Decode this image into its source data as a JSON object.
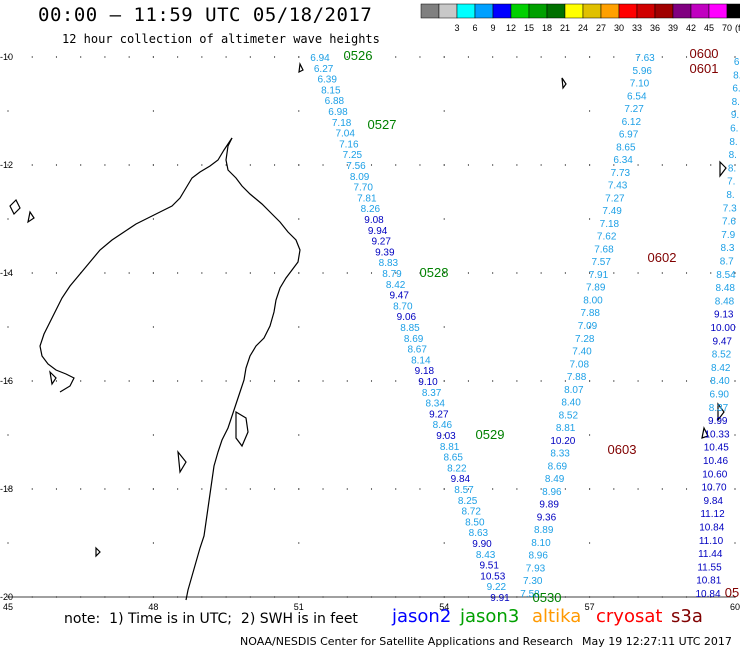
{
  "header": {
    "title": "00:00 – 11:59 UTC 05/18/2017",
    "subtitle": "12 hour collection of altimeter wave heights"
  },
  "color_scale": {
    "unit_label": "(ft)",
    "bins": [
      {
        "label": "",
        "color": "#808080"
      },
      {
        "label": "3",
        "color": "#c8c8c8"
      },
      {
        "label": "6",
        "color": "#00ffff"
      },
      {
        "label": "9",
        "color": "#00a0ff"
      },
      {
        "label": "12",
        "color": "#0000ff"
      },
      {
        "label": "15",
        "color": "#00d000"
      },
      {
        "label": "18",
        "color": "#00a000"
      },
      {
        "label": "21",
        "color": "#007000"
      },
      {
        "label": "24",
        "color": "#ffff00"
      },
      {
        "label": "27",
        "color": "#e0c000"
      },
      {
        "label": "30",
        "color": "#ffa000"
      },
      {
        "label": "33",
        "color": "#ff0000"
      },
      {
        "label": "36",
        "color": "#d00000"
      },
      {
        "label": "39",
        "color": "#a00000"
      },
      {
        "label": "42",
        "color": "#800080"
      },
      {
        "label": "45",
        "color": "#c000c0"
      },
      {
        "label": "70",
        "color": "#ff00ff"
      },
      {
        "label": "",
        "color": "#000000"
      }
    ]
  },
  "axes": {
    "x_labels": [
      "45",
      "48",
      "51",
      "54",
      "57",
      "60"
    ],
    "y_labels": [
      "-10",
      "-12",
      "-14",
      "-16",
      "-18",
      "-20"
    ]
  },
  "colors": {
    "cyan_track": "#1ea0e6",
    "blue_track": "#0000c0",
    "green_label": "#008000",
    "red_label": "#800000",
    "orange": "#ff9900",
    "red": "#ff0000"
  },
  "time_labels": [
    {
      "text": "0526",
      "color": "green"
    },
    {
      "text": "0527",
      "color": "green"
    },
    {
      "text": "0528",
      "color": "green"
    },
    {
      "text": "0529",
      "color": "green"
    },
    {
      "text": "0530",
      "color": "green"
    },
    {
      "text": "0600",
      "color": "red"
    },
    {
      "text": "0601",
      "color": "red"
    },
    {
      "text": "0602",
      "color": "red"
    },
    {
      "text": "0603",
      "color": "red"
    },
    {
      "text": "05",
      "color": "red"
    }
  ],
  "tracks": [
    {
      "name": "track-1",
      "values": [
        "6.94",
        "6.27",
        "6.39",
        "8.15",
        "6.88",
        "6.98",
        "7.18",
        "7.04",
        "7.16",
        "7.25",
        "7.56",
        "8.09",
        "7.70",
        "7.81",
        "8.26",
        "9.08",
        "9.94",
        "9.27",
        "9.39",
        "8.83",
        "8.79",
        "8.42",
        "9.47",
        "8.70",
        "9.06",
        "8.85",
        "8.69",
        "8.67",
        "8.14",
        "9.18",
        "9.10",
        "8.37",
        "8.34",
        "9.27",
        "8.46",
        "9.03",
        "8.81",
        "8.65",
        "8.22",
        "9.84",
        "8.57",
        "8.25",
        "8.72",
        "8.50",
        "8.63",
        "9.90",
        "8.43",
        "9.51",
        "10.53",
        "9.22",
        "9.91"
      ],
      "dark": [
        15,
        16,
        17,
        18,
        22,
        24,
        29,
        30,
        33,
        35,
        39,
        45,
        47,
        48,
        50
      ]
    },
    {
      "name": "track-2",
      "values": [
        "7.63",
        "5.96",
        "7.10",
        "6.54",
        "7.27",
        "6.12",
        "6.97",
        "8.65",
        "6.34",
        "7.73",
        "7.43",
        "7.27",
        "7.49",
        "7.18",
        "7.62",
        "7.68",
        "7.57",
        "7.91",
        "7.89",
        "8.00",
        "7.88",
        "7.09",
        "7.28",
        "7.40",
        "7.08",
        "7.88",
        "8.07",
        "8.40",
        "8.52",
        "8.81",
        "10.20",
        "8.33",
        "8.69",
        "8.49",
        "8.96",
        "9.89",
        "9.36",
        "8.89",
        "8.10",
        "8.96",
        "7.93",
        "7.30",
        "7.58"
      ],
      "dark": [
        30,
        35,
        36
      ]
    },
    {
      "name": "track-3",
      "values": [
        "6.",
        "8.",
        "6.",
        "8.",
        "9.",
        "6.",
        "8.",
        "8.",
        "8.",
        "7.",
        "8.",
        "7.3",
        "7.6",
        "7.9",
        "8.3",
        "8.7",
        "8.54",
        "8.48",
        "8.48",
        "9.13",
        "10.00",
        "9.47",
        "8.52",
        "8.42",
        "8.40",
        "6.90",
        "8.37",
        "9.99",
        "10.33",
        "10.45",
        "10.46",
        "10.60",
        "10.70",
        "9.84",
        "11.12",
        "10.84",
        "11.10",
        "11.44",
        "11.55",
        "10.81",
        "10.84"
      ],
      "dark": [
        19,
        20,
        21,
        27,
        28,
        29,
        30,
        31,
        32,
        33,
        34,
        35,
        36,
        37,
        38,
        39,
        40
      ]
    }
  ],
  "footer": {
    "note": "note:  1) Time is in UTC;  2) SWH is in feet",
    "legend": [
      {
        "name": "jason2",
        "color": "#0000ff"
      },
      {
        "name": "jason3",
        "color": "#00a000"
      },
      {
        "name": "altika",
        "color": "#ff9900"
      },
      {
        "name": "cryosat",
        "color": "#ff0000"
      },
      {
        "name": "s3a",
        "color": "#800000"
      }
    ],
    "credit": "NOAA/NESDIS Center for Satellite Applications and Research",
    "timestamp": "May 19 12:27:11 UTC 2017"
  }
}
